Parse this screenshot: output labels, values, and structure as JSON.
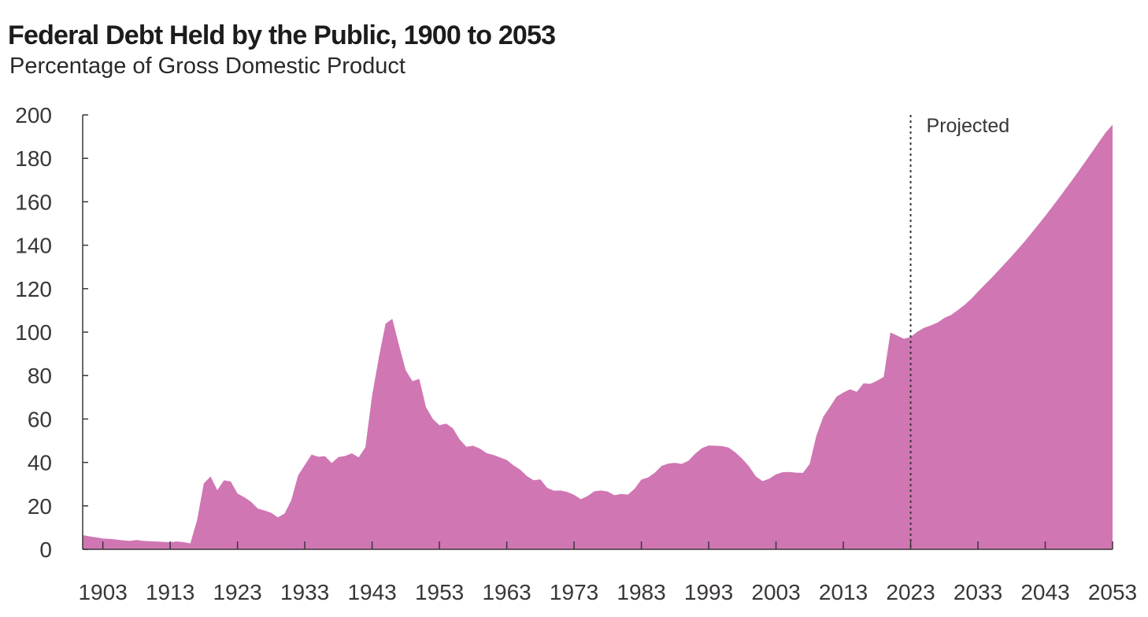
{
  "chart_data": {
    "type": "area",
    "title": "Federal Debt Held by the Public, 1900 to 2053",
    "subtitle": "Percentage of Gross Domestic Product",
    "xlabel": "",
    "ylabel": "",
    "xlim": [
      1900,
      2053
    ],
    "ylim": [
      0,
      200
    ],
    "grid": false,
    "fill_color": "#d076b3",
    "divider_year": 2023,
    "annotation": "Projected",
    "x_ticks": [
      1903,
      1913,
      1923,
      1933,
      1943,
      1953,
      1963,
      1973,
      1983,
      1993,
      2003,
      2013,
      2023,
      2033,
      2043,
      2053
    ],
    "x_tick_labels": [
      "1903",
      "1913",
      "1923",
      "1933",
      "1943",
      "1953",
      "1963",
      "1973",
      "1983",
      "1993",
      "2003",
      "2013",
      "2023",
      "2033",
      "2043",
      "2053"
    ],
    "y_ticks": [
      0,
      20,
      40,
      60,
      80,
      100,
      120,
      140,
      160,
      180,
      200
    ],
    "y_tick_labels": [
      "0",
      "20",
      "40",
      "60",
      "80",
      "100",
      "120",
      "140",
      "160",
      "180",
      "200"
    ],
    "series": [
      {
        "name": "Federal Debt Held by the Public",
        "x": [
          1900,
          1901,
          1902,
          1903,
          1904,
          1905,
          1906,
          1907,
          1908,
          1909,
          1910,
          1911,
          1912,
          1913,
          1914,
          1915,
          1916,
          1917,
          1918,
          1919,
          1920,
          1921,
          1922,
          1923,
          1924,
          1925,
          1926,
          1927,
          1928,
          1929,
          1930,
          1931,
          1932,
          1933,
          1934,
          1935,
          1936,
          1937,
          1938,
          1939,
          1940,
          1941,
          1942,
          1943,
          1944,
          1945,
          1946,
          1947,
          1948,
          1949,
          1950,
          1951,
          1952,
          1953,
          1954,
          1955,
          1956,
          1957,
          1958,
          1959,
          1960,
          1961,
          1962,
          1963,
          1964,
          1965,
          1966,
          1967,
          1968,
          1969,
          1970,
          1971,
          1972,
          1973,
          1974,
          1975,
          1976,
          1977,
          1978,
          1979,
          1980,
          1981,
          1982,
          1983,
          1984,
          1985,
          1986,
          1987,
          1988,
          1989,
          1990,
          1991,
          1992,
          1993,
          1994,
          1995,
          1996,
          1997,
          1998,
          1999,
          2000,
          2001,
          2002,
          2003,
          2004,
          2005,
          2006,
          2007,
          2008,
          2009,
          2010,
          2011,
          2012,
          2013,
          2014,
          2015,
          2016,
          2017,
          2018,
          2019,
          2020,
          2021,
          2022,
          2023,
          2024,
          2025,
          2026,
          2027,
          2028,
          2029,
          2030,
          2031,
          2032,
          2033,
          2034,
          2035,
          2036,
          2037,
          2038,
          2039,
          2040,
          2041,
          2042,
          2043,
          2044,
          2045,
          2046,
          2047,
          2048,
          2049,
          2050,
          2051,
          2052,
          2053
        ],
        "values": [
          6.5,
          6,
          5.5,
          5,
          4.8,
          4.5,
          4.1,
          3.9,
          4.3,
          3.9,
          3.7,
          3.6,
          3.4,
          3.3,
          3.6,
          3.3,
          2.7,
          13.5,
          30.4,
          33.5,
          27.2,
          31.8,
          31.2,
          25.7,
          24,
          21.9,
          18.8,
          17.9,
          16.8,
          14.7,
          16.5,
          22.7,
          34,
          38.8,
          43.6,
          42.6,
          42.9,
          39.7,
          42.5,
          43,
          44.2,
          42.3,
          47,
          70.9,
          88.3,
          103.9,
          106.1,
          93.9,
          82.4,
          77.4,
          78.5,
          65.5,
          60.1,
          57.1,
          57.9,
          55.7,
          50.6,
          47.2,
          47.7,
          46.4,
          44.3,
          43.5,
          42.3,
          41.1,
          38.7,
          36.7,
          33.7,
          31.8,
          32.2,
          28.3,
          27,
          27.1,
          26.4,
          25.1,
          23.1,
          24.5,
          26.7,
          27.1,
          26.6,
          24.9,
          25.5,
          25.2,
          27.9,
          32.1,
          33.1,
          35.3,
          38.4,
          39.5,
          39.8,
          39.3,
          40.8,
          44,
          46.6,
          47.8,
          47.7,
          47.5,
          46.8,
          44.5,
          41.6,
          38.2,
          33.6,
          31.4,
          32.5,
          34.5,
          35.5,
          35.6,
          35.3,
          35.2,
          39.3,
          52.3,
          60.9,
          65.5,
          70.3,
          72.2,
          73.7,
          72.5,
          76.4,
          76.2,
          77.6,
          79.4,
          99.8,
          98.4,
          96.9,
          97.8,
          100.2,
          102,
          103.1,
          104.4,
          106.5,
          107.9,
          110.1,
          112.5,
          115.3,
          118.6,
          121.8,
          124.9,
          128.2,
          131.5,
          134.9,
          138.4,
          142,
          145.8,
          149.6,
          153.5,
          157.5,
          161.6,
          165.8,
          170,
          174.3,
          178.7,
          183.1,
          187.6,
          192,
          195.5
        ]
      }
    ]
  }
}
